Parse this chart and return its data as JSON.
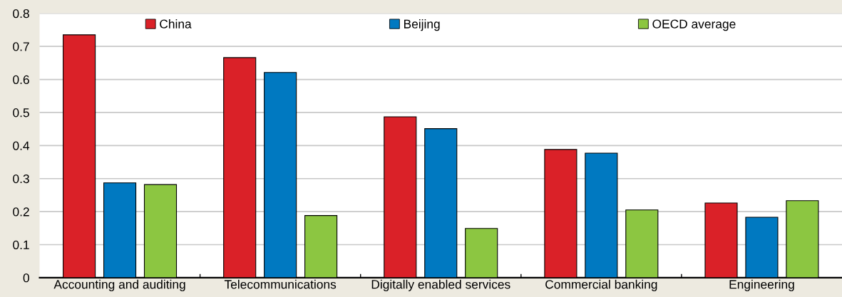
{
  "chart_data": {
    "type": "bar",
    "categories": [
      "Accounting and auditing",
      "Telecommunications",
      "Digitally enabled services",
      "Commercial banking",
      "Engineering"
    ],
    "series": [
      {
        "name": "China",
        "color": "#da2128",
        "values": [
          0.735,
          0.666,
          0.487,
          0.388,
          0.226
        ]
      },
      {
        "name": "Beijing",
        "color": "#0079c1",
        "values": [
          0.287,
          0.621,
          0.451,
          0.377,
          0.183
        ]
      },
      {
        "name": "OECD average",
        "color": "#8cc641",
        "values": [
          0.282,
          0.188,
          0.149,
          0.205,
          0.233
        ]
      }
    ],
    "ylim": [
      0,
      0.8
    ],
    "yticks": [
      0,
      0.1,
      0.2,
      0.3,
      0.4,
      0.5,
      0.6,
      0.7,
      0.8
    ],
    "grid": "y",
    "legend": "top"
  }
}
